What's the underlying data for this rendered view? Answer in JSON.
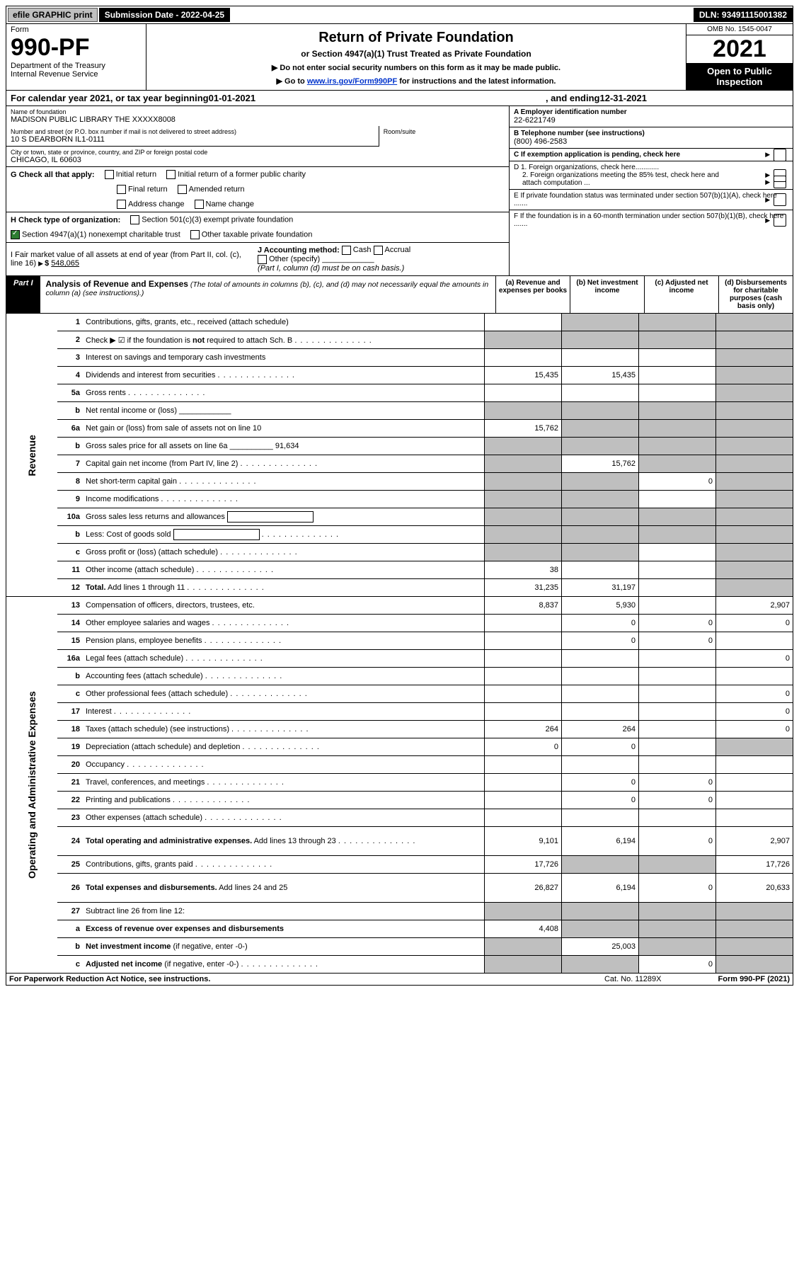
{
  "top": {
    "efile": "efile GRAPHIC print",
    "submission_label": "Submission Date - ",
    "submission_date": "2022-04-25",
    "dln_label": "DLN: ",
    "dln": "93491115001382"
  },
  "header": {
    "form_word": "Form",
    "form_no": "990-PF",
    "dept": "Department of the Treasury",
    "irs": "Internal Revenue Service",
    "title": "Return of Private Foundation",
    "subtitle": "or Section 4947(a)(1) Trust Treated as Private Foundation",
    "note1": "▶ Do not enter social security numbers on this form as it may be made public.",
    "note2_pre": "▶ Go to ",
    "note2_link": "www.irs.gov/Form990PF",
    "note2_post": " for instructions and the latest information.",
    "omb": "OMB No. 1545-0047",
    "year": "2021",
    "open_pub": "Open to Public Inspection"
  },
  "calyear": {
    "text_a": "For calendar year 2021, or tax year beginning ",
    "begin": "01-01-2021",
    "text_b": ", and ending ",
    "end": "12-31-2021"
  },
  "id": {
    "name_label": "Name of foundation",
    "name": "MADISON PUBLIC LIBRARY THE XXXXX8008",
    "addr_label": "Number and street (or P.O. box number if mail is not delivered to street address)",
    "addr": "10 S DEARBORN IL1-0111",
    "room_label": "Room/suite",
    "city_label": "City or town, state or province, country, and ZIP or foreign postal code",
    "city": "CHICAGO, IL  60603",
    "ein_label": "A Employer identification number",
    "ein": "22-6221749",
    "tel_label": "B Telephone number (see instructions)",
    "tel": "(800) 496-2583",
    "c_label": "C If exemption application is pending, check here",
    "d1": "D 1. Foreign organizations, check here............",
    "d2": "2. Foreign organizations meeting the 85% test, check here and attach computation ...",
    "e": "E  If private foundation status was terminated under section 507(b)(1)(A), check here .......",
    "f": "F  If the foundation is in a 60-month termination under section 507(b)(1)(B), check here .......",
    "g_label": "G Check all that apply:",
    "g_opts": [
      "Initial return",
      "Initial return of a former public charity",
      "Final return",
      "Amended return",
      "Address change",
      "Name change"
    ],
    "h_label": "H Check type of organization:",
    "h1": "Section 501(c)(3) exempt private foundation",
    "h2": "Section 4947(a)(1) nonexempt charitable trust",
    "h3": "Other taxable private foundation",
    "i_label": "I Fair market value of all assets at end of year (from Part II, col. (c), line 16)",
    "i_val": "548,065",
    "j_label": "J Accounting method:",
    "j_opts": [
      "Cash",
      "Accrual",
      "Other (specify)"
    ],
    "j_note": "(Part I, column (d) must be on cash basis.)"
  },
  "part1": {
    "label": "Part I",
    "title_b": "Analysis of Revenue and Expenses",
    "title_rest": " (The total of amounts in columns (b), (c), and (d) may not necessarily equal the amounts in column (a) (see instructions).)",
    "col_a": "(a)  Revenue and expenses per books",
    "col_b": "(b)  Net investment income",
    "col_c": "(c)  Adjusted net income",
    "col_d": "(d)  Disbursements for charitable purposes (cash basis only)"
  },
  "sections": {
    "revenue": "Revenue",
    "opex": "Operating and Administrative Expenses"
  },
  "rows": [
    {
      "n": "1",
      "d": "Contributions, gifts, grants, etc., received (attach schedule)",
      "a": "",
      "b": "s",
      "c": "s",
      "dd": "s"
    },
    {
      "n": "2",
      "d": "Check ▶ ☑ if the foundation is <b>not</b> required to attach Sch. B",
      "a": "s",
      "b": "s",
      "c": "s",
      "dd": "s",
      "dots": 1
    },
    {
      "n": "3",
      "d": "Interest on savings and temporary cash investments",
      "a": "",
      "b": "",
      "c": "",
      "dd": "s"
    },
    {
      "n": "4",
      "d": "Dividends and interest from securities",
      "a": "15,435",
      "b": "15,435",
      "c": "",
      "dd": "s",
      "dots": 1
    },
    {
      "n": "5a",
      "d": "Gross rents",
      "a": "",
      "b": "",
      "c": "",
      "dd": "s",
      "dots": 1
    },
    {
      "n": "b",
      "d": "Net rental income or (loss) ____________",
      "a": "s",
      "b": "s",
      "c": "s",
      "dd": "s"
    },
    {
      "n": "6a",
      "d": "Net gain or (loss) from sale of assets not on line 10",
      "a": "15,762",
      "b": "s",
      "c": "s",
      "dd": "s"
    },
    {
      "n": "b",
      "d": "Gross sales price for all assets on line 6a __________ 91,634",
      "a": "s",
      "b": "s",
      "c": "s",
      "dd": "s"
    },
    {
      "n": "7",
      "d": "Capital gain net income (from Part IV, line 2)",
      "a": "s",
      "b": "15,762",
      "c": "s",
      "dd": "s",
      "dots": 1
    },
    {
      "n": "8",
      "d": "Net short-term capital gain",
      "a": "s",
      "b": "s",
      "c": "0",
      "dd": "s",
      "dots": 1
    },
    {
      "n": "9",
      "d": "Income modifications",
      "a": "s",
      "b": "s",
      "c": "",
      "dd": "s",
      "dots": 1
    },
    {
      "n": "10a",
      "d": "Gross sales less returns and allowances",
      "a": "s",
      "b": "s",
      "c": "s",
      "dd": "s",
      "box": 1
    },
    {
      "n": "b",
      "d": "Less: Cost of goods sold",
      "a": "s",
      "b": "s",
      "c": "s",
      "dd": "s",
      "dots": 1,
      "box": 1
    },
    {
      "n": "c",
      "d": "Gross profit or (loss) (attach schedule)",
      "a": "s",
      "b": "s",
      "c": "",
      "dd": "s",
      "dots": 1
    },
    {
      "n": "11",
      "d": "Other income (attach schedule)",
      "a": "38",
      "b": "",
      "c": "",
      "dd": "s",
      "dots": 1
    },
    {
      "n": "12",
      "d": "<b>Total.</b> Add lines 1 through 11",
      "a": "31,235",
      "b": "31,197",
      "c": "",
      "dd": "s",
      "dots": 1
    }
  ],
  "rows2": [
    {
      "n": "13",
      "d": "Compensation of officers, directors, trustees, etc.",
      "a": "8,837",
      "b": "5,930",
      "c": "",
      "dd": "2,907"
    },
    {
      "n": "14",
      "d": "Other employee salaries and wages",
      "a": "",
      "b": "0",
      "c": "0",
      "dd": "0",
      "dots": 1
    },
    {
      "n": "15",
      "d": "Pension plans, employee benefits",
      "a": "",
      "b": "0",
      "c": "0",
      "dd": "",
      "dots": 1
    },
    {
      "n": "16a",
      "d": "Legal fees (attach schedule)",
      "a": "",
      "b": "",
      "c": "",
      "dd": "0",
      "dots": 1
    },
    {
      "n": "b",
      "d": "Accounting fees (attach schedule)",
      "a": "",
      "b": "",
      "c": "",
      "dd": "",
      "dots": 1
    },
    {
      "n": "c",
      "d": "Other professional fees (attach schedule)",
      "a": "",
      "b": "",
      "c": "",
      "dd": "0",
      "dots": 1
    },
    {
      "n": "17",
      "d": "Interest",
      "a": "",
      "b": "",
      "c": "",
      "dd": "0",
      "dots": 1
    },
    {
      "n": "18",
      "d": "Taxes (attach schedule) (see instructions)",
      "a": "264",
      "b": "264",
      "c": "",
      "dd": "0",
      "dots": 1
    },
    {
      "n": "19",
      "d": "Depreciation (attach schedule) and depletion",
      "a": "0",
      "b": "0",
      "c": "",
      "dd": "s",
      "dots": 1
    },
    {
      "n": "20",
      "d": "Occupancy",
      "a": "",
      "b": "",
      "c": "",
      "dd": "",
      "dots": 1
    },
    {
      "n": "21",
      "d": "Travel, conferences, and meetings",
      "a": "",
      "b": "0",
      "c": "0",
      "dd": "",
      "dots": 1
    },
    {
      "n": "22",
      "d": "Printing and publications",
      "a": "",
      "b": "0",
      "c": "0",
      "dd": "",
      "dots": 1
    },
    {
      "n": "23",
      "d": "Other expenses (attach schedule)",
      "a": "",
      "b": "",
      "c": "",
      "dd": "",
      "dots": 1
    },
    {
      "n": "24",
      "d": "<b>Total operating and administrative expenses.</b> Add lines 13 through 23",
      "a": "9,101",
      "b": "6,194",
      "c": "0",
      "dd": "2,907",
      "dots": 1,
      "tall": 1
    },
    {
      "n": "25",
      "d": "Contributions, gifts, grants paid",
      "a": "17,726",
      "b": "s",
      "c": "s",
      "dd": "17,726",
      "dots": 1
    },
    {
      "n": "26",
      "d": "<b>Total expenses and disbursements.</b> Add lines 24 and 25",
      "a": "26,827",
      "b": "6,194",
      "c": "0",
      "dd": "20,633",
      "tall": 1
    },
    {
      "n": "27",
      "d": "Subtract line 26 from line 12:",
      "a": "s",
      "b": "s",
      "c": "s",
      "dd": "s"
    },
    {
      "n": "a",
      "d": "<b>Excess of revenue over expenses and disbursements</b>",
      "a": "4,408",
      "b": "s",
      "c": "s",
      "dd": "s"
    },
    {
      "n": "b",
      "d": "<b>Net investment income</b> (if negative, enter -0-)",
      "a": "s",
      "b": "25,003",
      "c": "s",
      "dd": "s"
    },
    {
      "n": "c",
      "d": "<b>Adjusted net income</b> (if negative, enter -0-)",
      "a": "s",
      "b": "s",
      "c": "0",
      "dd": "s",
      "dots": 1
    }
  ],
  "footer": {
    "left": "For Paperwork Reduction Act Notice, see instructions.",
    "center": "Cat. No. 11289X",
    "right": "Form 990-PF (2021)"
  }
}
